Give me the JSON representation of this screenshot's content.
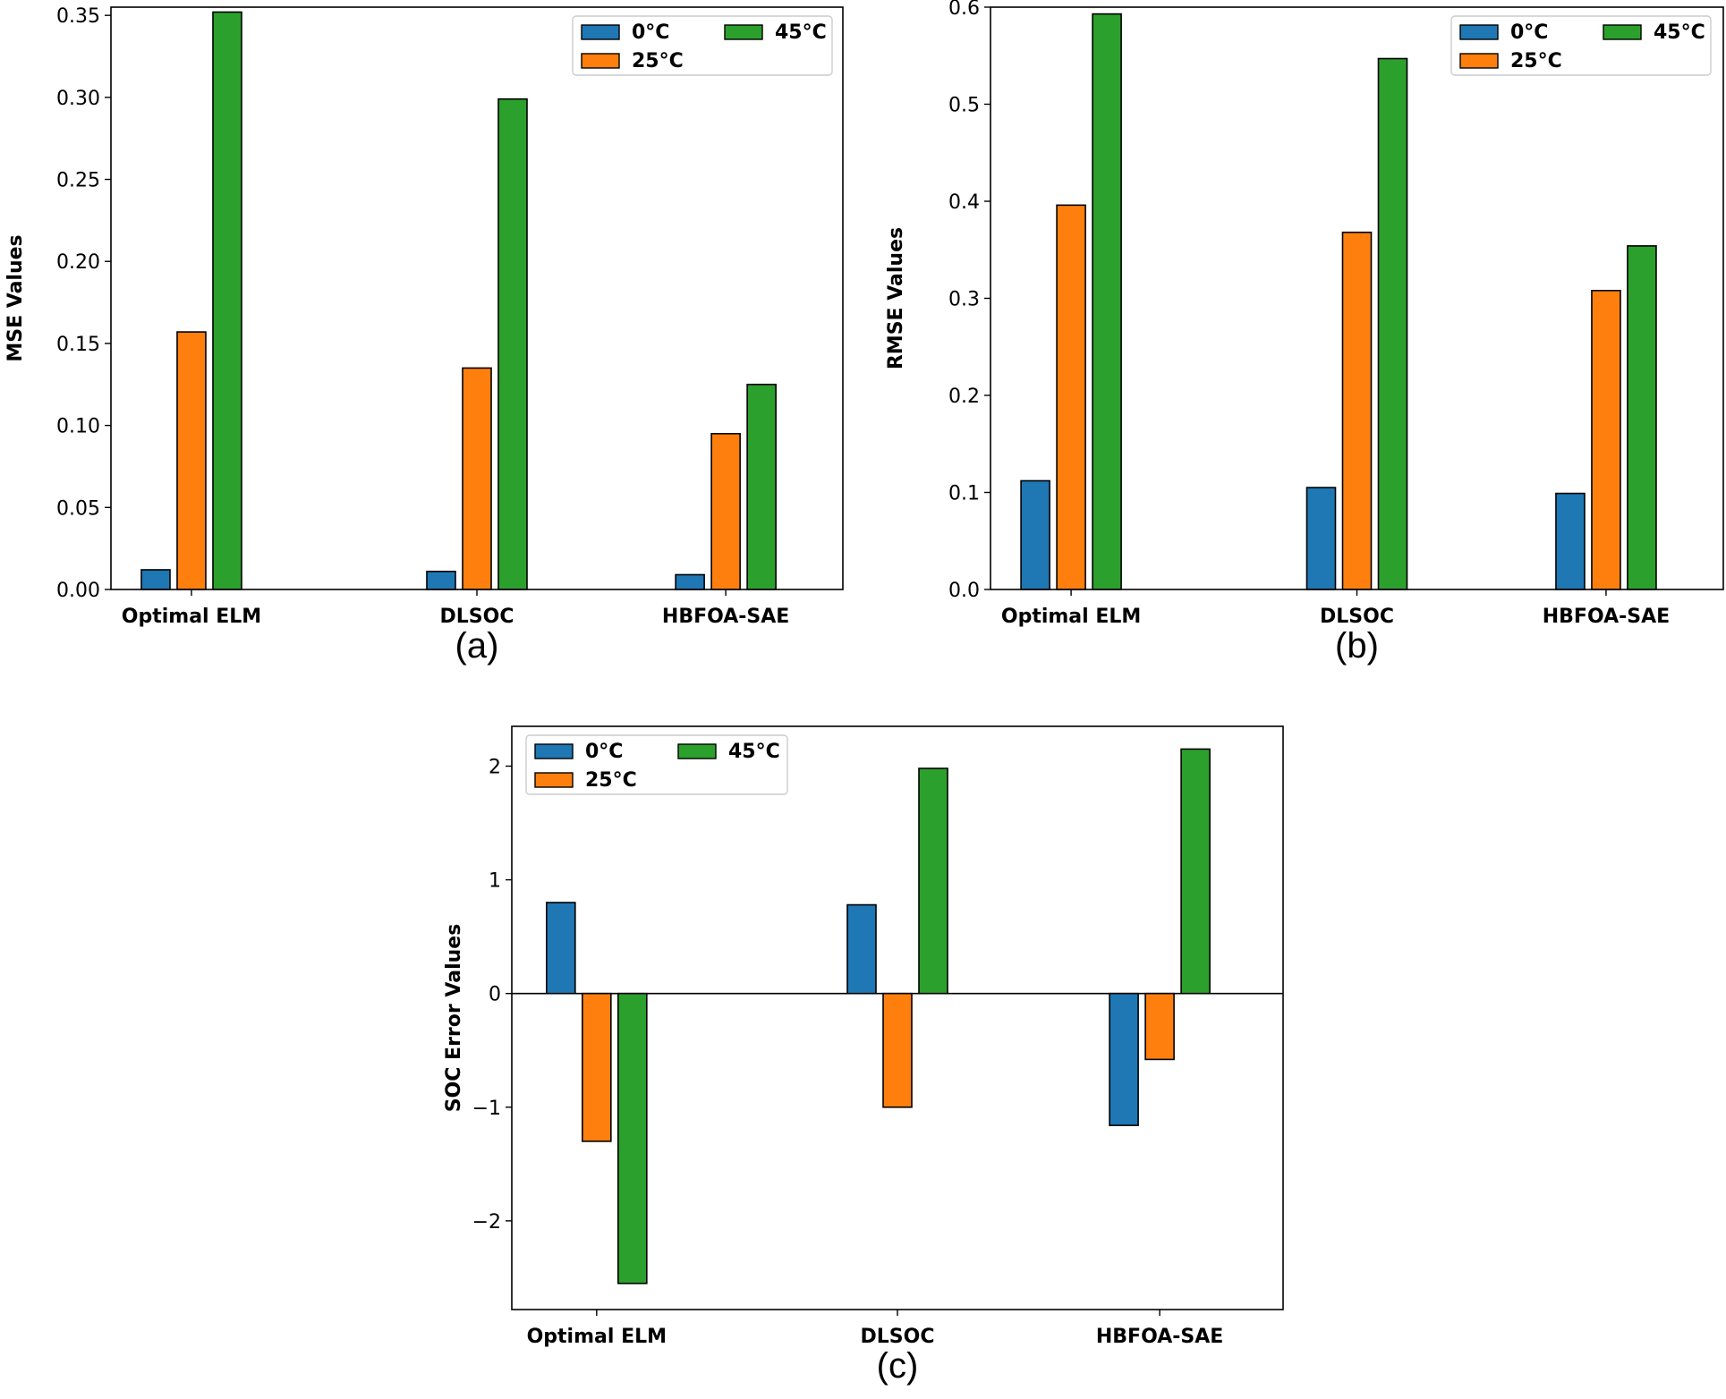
{
  "chart_data": [
    {
      "type": "bar",
      "caption": "(a)",
      "categories": [
        "Optimal ELM",
        "DLSOC",
        "HBFOA-SAE"
      ],
      "series": [
        {
          "name": "0°C",
          "values": [
            0.012,
            0.011,
            0.009
          ]
        },
        {
          "name": "25°C",
          "values": [
            0.157,
            0.135,
            0.095
          ]
        },
        {
          "name": "45°C",
          "values": [
            0.352,
            0.299,
            0.125
          ]
        }
      ],
      "xlabel": "",
      "ylabel": "MSE Values",
      "ylim": [
        0,
        0.355
      ],
      "yticks": [
        0.0,
        0.05,
        0.1,
        0.15,
        0.2,
        0.25,
        0.3,
        0.35
      ],
      "ytick_labels": [
        "0.00",
        "0.05",
        "0.10",
        "0.15",
        "0.20",
        "0.25",
        "0.30",
        "0.35"
      ],
      "grid": false,
      "legend_position": "top-right"
    },
    {
      "type": "bar",
      "caption": "(b)",
      "categories": [
        "Optimal ELM",
        "DLSOC",
        "HBFOA-SAE"
      ],
      "series": [
        {
          "name": "0°C",
          "values": [
            0.112,
            0.105,
            0.099
          ]
        },
        {
          "name": "25°C",
          "values": [
            0.396,
            0.368,
            0.308
          ]
        },
        {
          "name": "45°C",
          "values": [
            0.593,
            0.547,
            0.354
          ]
        }
      ],
      "xlabel": "",
      "ylabel": "RMSE Values",
      "ylim": [
        0,
        0.6
      ],
      "yticks": [
        0.0,
        0.1,
        0.2,
        0.3,
        0.4,
        0.5,
        0.6
      ],
      "ytick_labels": [
        "0.0",
        "0.1",
        "0.2",
        "0.3",
        "0.4",
        "0.5",
        "0.6"
      ],
      "grid": false,
      "legend_position": "top-right"
    },
    {
      "type": "bar",
      "caption": "(c)",
      "categories": [
        "Optimal ELM",
        "DLSOC",
        "HBFOA-SAE"
      ],
      "series": [
        {
          "name": "0°C",
          "values": [
            0.8,
            0.78,
            -1.16
          ]
        },
        {
          "name": "25°C",
          "values": [
            -1.3,
            -1.0,
            -0.58
          ]
        },
        {
          "name": "45°C",
          "values": [
            -2.55,
            1.98,
            2.15
          ]
        }
      ],
      "xlabel": "",
      "ylabel": "SOC Error Values",
      "ylim": [
        -2.78,
        2.35
      ],
      "yticks": [
        -2,
        -1,
        0,
        1,
        2
      ],
      "ytick_labels": [
        "−2",
        "−1",
        "0",
        "1",
        "2"
      ],
      "grid": false,
      "legend_position": "top-left"
    }
  ],
  "colors": {
    "series": [
      "#1f77b4",
      "#ff7f0e",
      "#2ca02c"
    ],
    "bar_edge": "#000000",
    "axes": "#000000",
    "legend_border": "#cccccc"
  }
}
